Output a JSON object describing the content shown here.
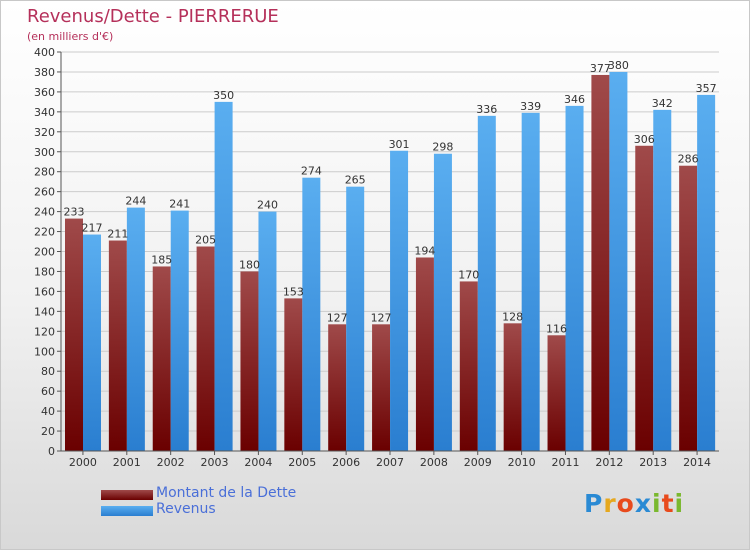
{
  "title": "Revenus/Dette - PIERRERUE",
  "subtitle": "(en milliers d'€)",
  "logo": {
    "letters": [
      "P",
      "r",
      "o",
      "x",
      "i",
      "t",
      "i"
    ],
    "colors": [
      "#2a8ad4",
      "#e6a81e",
      "#e84a1c",
      "#2a8ad4",
      "#7ab82e",
      "#e84a1c",
      "#7ab82e"
    ]
  },
  "colors": {
    "debt_top": "#a04a4a",
    "debt_bottom": "#6a0000",
    "revenue_top": "#5aaef0",
    "revenue_bottom": "#2a7ed0",
    "grid": "#cccccc",
    "axis": "#555555",
    "title": "#b5305a",
    "legend_text": "#4a6fd8"
  },
  "legend": [
    {
      "label": "Montant de la Dette",
      "color": "#6a0000"
    },
    {
      "label": "Revenus",
      "color": "#3a93e0"
    }
  ],
  "chart_data": {
    "type": "bar",
    "categories": [
      "2000",
      "2001",
      "2002",
      "2003",
      "2004",
      "2005",
      "2006",
      "2007",
      "2008",
      "2009",
      "2010",
      "2011",
      "2012",
      "2013",
      "2014"
    ],
    "series": [
      {
        "name": "Montant de la Dette",
        "values": [
          233,
          211,
          185,
          205,
          180,
          153,
          127,
          127,
          194,
          170,
          128,
          116,
          377,
          306,
          286
        ]
      },
      {
        "name": "Revenus",
        "values": [
          217,
          244,
          241,
          350,
          240,
          274,
          265,
          301,
          298,
          336,
          339,
          346,
          380,
          342,
          357
        ]
      }
    ],
    "y_ticks": [
      0,
      20,
      40,
      60,
      80,
      100,
      120,
      140,
      160,
      180,
      200,
      220,
      240,
      260,
      280,
      300,
      320,
      340,
      360,
      380,
      400
    ],
    "ylim": [
      0,
      400
    ],
    "grid": true,
    "legend_position": "bottom-left"
  }
}
